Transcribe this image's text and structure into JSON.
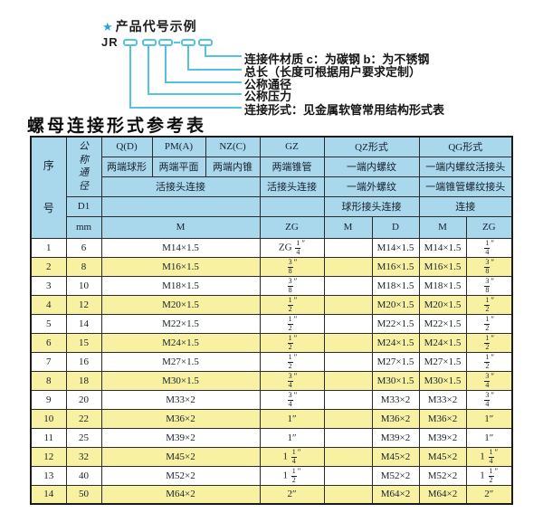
{
  "diagram": {
    "star_icon": "★",
    "title": "产品代号示例",
    "prefix": "JR",
    "labels": [
      "连接件材质  c：为碳钢  b：为不锈钢",
      "总长（长度可根据用户要求定制）",
      "公称通径",
      "公称压力",
      "连接形式：见金属软管常用结构形式表"
    ]
  },
  "table": {
    "title": "螺母连接形式参考表",
    "header": {
      "seq": "序号",
      "nominal_diameter": "公称通径",
      "d1": "D1",
      "mm": "mm",
      "q_d": "Q(D)",
      "pm_a": "PM(A)",
      "nz_c": "NZ(C)",
      "gz": "GZ",
      "qz": "QZ形式",
      "qg": "QG形式",
      "q_desc": "两端球形",
      "pm_desc": "两端平面",
      "nz_desc": "两端内锥",
      "gz_desc": "两端锥管",
      "qz_desc1": "一端内螺纹",
      "qg_desc1": "一端内螺纹活接头",
      "union_conn": "活接头连接",
      "gz_conn": "活接头连接",
      "qz_desc2": "一端外螺纹",
      "qg_desc2": "一端锥管螺纹接头",
      "qz_conn": "球形接头连接",
      "qg_conn": "连接",
      "m_col": "M",
      "zg_col": "ZG",
      "qz_m_col": "M",
      "qz_d_col": "D",
      "qg_m_col": "M",
      "qg_zg_col": "ZG"
    },
    "rows": [
      {
        "no": "1",
        "mm": "6",
        "m": "M14×1.5",
        "gz": "ZG 1/4″",
        "qz_m": "",
        "qz_d": "M14×1.5",
        "qg_m": "M14×1.5",
        "qg_zg": "1/4″"
      },
      {
        "no": "2",
        "mm": "8",
        "m": "M16×1.5",
        "gz": "3/8″",
        "qz_m": "",
        "qz_d": "M16×1.5",
        "qg_m": "M16×1.5",
        "qg_zg": "3/8″"
      },
      {
        "no": "3",
        "mm": "10",
        "m": "M18×1.5",
        "gz": "3/8″",
        "qz_m": "",
        "qz_d": "M18×1.5",
        "qg_m": "M18×1.5",
        "qg_zg": "3/8″"
      },
      {
        "no": "4",
        "mm": "12",
        "m": "M20×1.5",
        "gz": "1/2″",
        "qz_m": "",
        "qz_d": "M20×1.5",
        "qg_m": "M20×1.5",
        "qg_zg": "1/2″"
      },
      {
        "no": "5",
        "mm": "14",
        "m": "M22×1.5",
        "gz": "1/2″",
        "qz_m": "",
        "qz_d": "M22×1.5",
        "qg_m": "M22×1.5",
        "qg_zg": "1/2″"
      },
      {
        "no": "6",
        "mm": "15",
        "m": "M24×1.5",
        "gz": "1/2″",
        "qz_m": "",
        "qz_d": "M24×1.5",
        "qg_m": "M24×1.5",
        "qg_zg": "1/2″"
      },
      {
        "no": "7",
        "mm": "16",
        "m": "M27×1.5",
        "gz": "1/2″",
        "qz_m": "",
        "qz_d": "M27×1.5",
        "qg_m": "M27×1.5",
        "qg_zg": "1/2″"
      },
      {
        "no": "8",
        "mm": "18",
        "m": "M30×1.5",
        "gz": "3/4″",
        "qz_m": "",
        "qz_d": "M30×1.5",
        "qg_m": "M30×1.5",
        "qg_zg": "3/4″"
      },
      {
        "no": "9",
        "mm": "20",
        "m": "M33×2",
        "gz": "3/4″",
        "qz_m": "",
        "qz_d": "M33×2",
        "qg_m": "M33×2",
        "qg_zg": "3/4″"
      },
      {
        "no": "10",
        "mm": "22",
        "m": "M36×2",
        "gz": "1″",
        "qz_m": "",
        "qz_d": "M36×2",
        "qg_m": "M36×2",
        "qg_zg": "1″"
      },
      {
        "no": "11",
        "mm": "25",
        "m": "M39×2",
        "gz": "1″",
        "qz_m": "",
        "qz_d": "M39×2",
        "qg_m": "M39×2",
        "qg_zg": "1″"
      },
      {
        "no": "12",
        "mm": "32",
        "m": "M45×2",
        "gz": "1 1/4″",
        "qz_m": "",
        "qz_d": "M45×2",
        "qg_m": "M45×2",
        "qg_zg": "1 1/4″"
      },
      {
        "no": "13",
        "mm": "40",
        "m": "M52×2",
        "gz": "1 1/2″",
        "qz_m": "",
        "qz_d": "M52×2",
        "qg_m": "M52×2",
        "qg_zg": "1 1/2″"
      },
      {
        "no": "14",
        "mm": "50",
        "m": "M64×2",
        "gz": "2″",
        "qz_m": "",
        "qz_d": "M64×2",
        "qg_m": "M64×2",
        "qg_zg": "2″"
      }
    ]
  },
  "colors": {
    "header_bg": "#a9d8ec",
    "alt_row_bg": "#f8f1a2",
    "diagram_line": "#55c3dd",
    "star": "#27a5d8",
    "border": "#2b2b2b"
  }
}
